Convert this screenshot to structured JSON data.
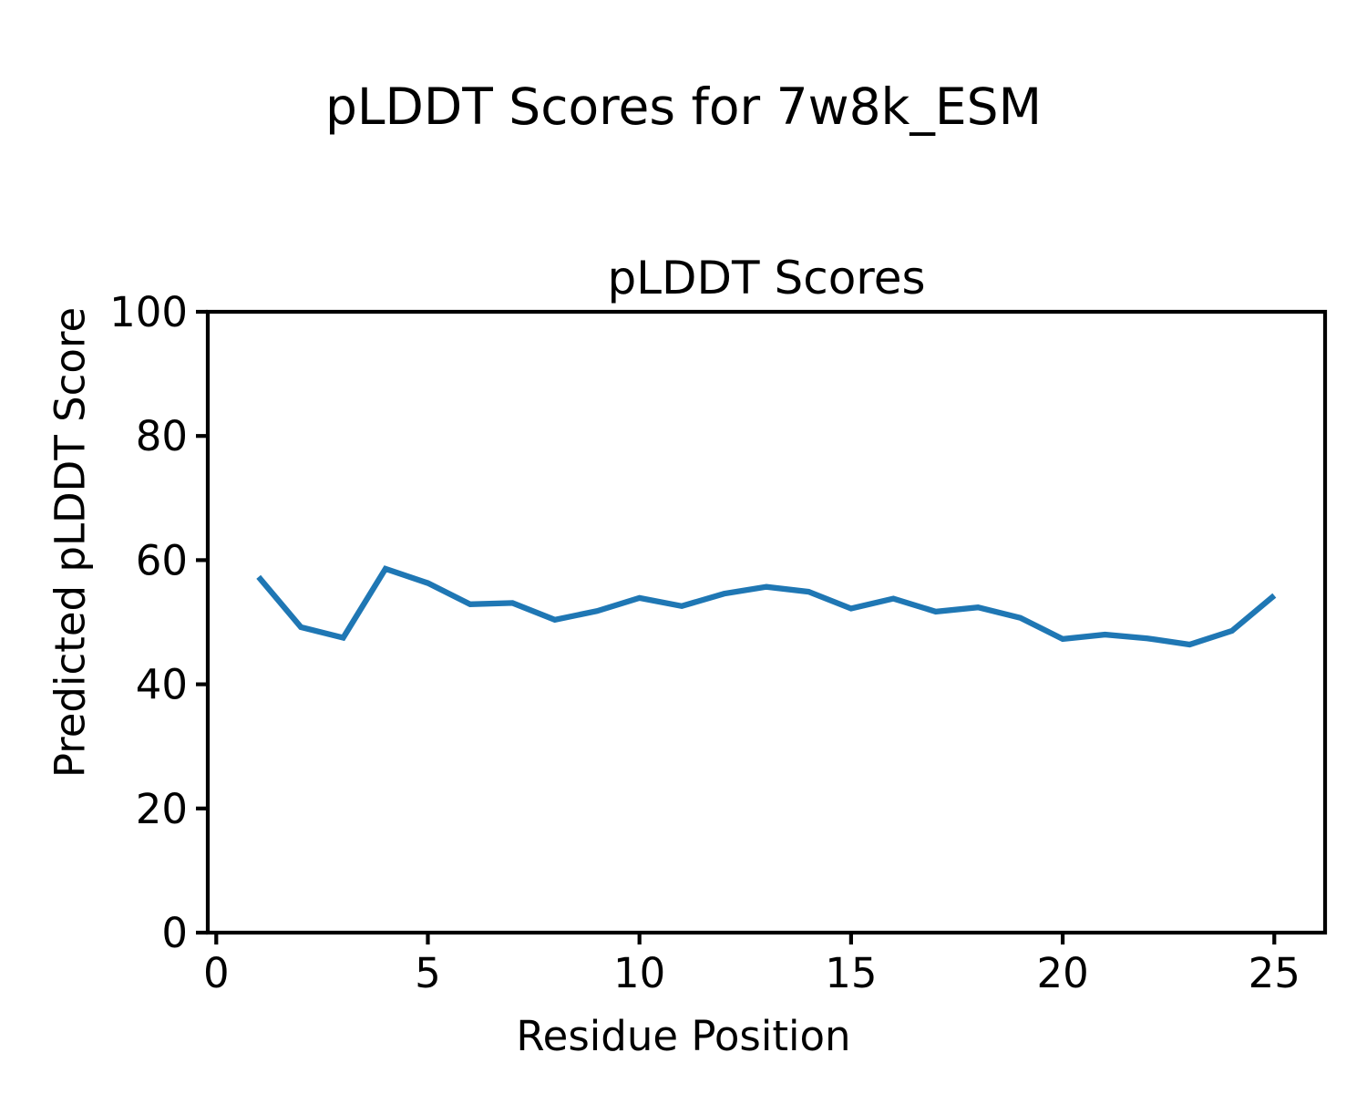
{
  "figure": {
    "suptitle": "pLDDT Scores for 7w8k_ESM",
    "background_color": "#ffffff",
    "text_color": "#000000"
  },
  "chart_data": {
    "type": "line",
    "title": "pLDDT Scores",
    "xlabel": "Residue Position",
    "ylabel": "Predicted pLDDT Score",
    "x": [
      1,
      2,
      3,
      4,
      5,
      6,
      7,
      8,
      9,
      10,
      11,
      12,
      13,
      14,
      15,
      16,
      17,
      18,
      19,
      20,
      21,
      22,
      23,
      24,
      25
    ],
    "series": [
      {
        "name": "pLDDT",
        "color": "#1f77b4",
        "values": [
          57.3,
          49.2,
          47.5,
          58.6,
          56.3,
          52.9,
          53.1,
          50.4,
          51.8,
          53.9,
          52.6,
          54.6,
          55.7,
          54.9,
          52.2,
          53.8,
          51.7,
          52.4,
          50.7,
          47.3,
          48.0,
          47.4,
          46.4,
          48.6,
          54.3
        ]
      }
    ],
    "xlim": [
      -0.2,
      26.2
    ],
    "ylim": [
      0,
      100
    ],
    "xticks": [
      0,
      5,
      10,
      15,
      20,
      25
    ],
    "yticks": [
      0,
      20,
      40,
      60,
      80,
      100
    ],
    "grid": false,
    "legend": "none",
    "axis_color": "#000000",
    "marker": "none"
  }
}
